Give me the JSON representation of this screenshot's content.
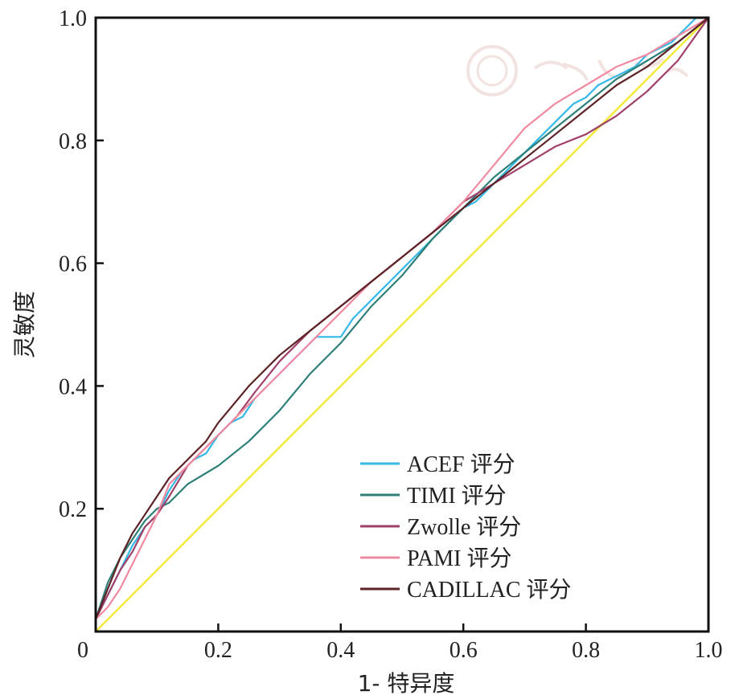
{
  "chart_data": {
    "type": "line",
    "title": "",
    "xlabel": "1- 特异度",
    "ylabel": "灵敏度",
    "xlim": [
      0,
      1
    ],
    "ylim": [
      0,
      1
    ],
    "x_ticks": [
      "0",
      "0.2",
      "0.4",
      "0.6",
      "0.8",
      "1.0"
    ],
    "y_ticks": [
      "0.2",
      "0.4",
      "0.6",
      "0.8",
      "1.0"
    ],
    "grid": false,
    "legend_position": "bottom-right",
    "series": [
      {
        "name": "ACEF 评分",
        "color": "#33b8e8",
        "x": [
          0,
          0.02,
          0.04,
          0.06,
          0.08,
          0.1,
          0.12,
          0.14,
          0.16,
          0.18,
          0.2,
          0.22,
          0.24,
          0.26,
          0.28,
          0.3,
          0.32,
          0.34,
          0.36,
          0.38,
          0.4,
          0.42,
          0.44,
          0.46,
          0.48,
          0.5,
          0.52,
          0.54,
          0.56,
          0.58,
          0.6,
          0.62,
          0.64,
          0.66,
          0.68,
          0.7,
          0.72,
          0.74,
          0.76,
          0.78,
          0.8,
          0.82,
          0.84,
          0.86,
          0.88,
          0.9,
          0.92,
          0.94,
          0.96,
          0.98,
          1.0
        ],
        "y": [
          0.02,
          0.06,
          0.1,
          0.14,
          0.17,
          0.19,
          0.23,
          0.26,
          0.28,
          0.29,
          0.32,
          0.34,
          0.35,
          0.38,
          0.4,
          0.42,
          0.44,
          0.46,
          0.48,
          0.48,
          0.48,
          0.51,
          0.53,
          0.55,
          0.57,
          0.59,
          0.61,
          0.63,
          0.65,
          0.67,
          0.69,
          0.7,
          0.72,
          0.74,
          0.76,
          0.78,
          0.8,
          0.82,
          0.84,
          0.86,
          0.87,
          0.89,
          0.9,
          0.91,
          0.92,
          0.94,
          0.95,
          0.96,
          0.98,
          1.0,
          1.0
        ]
      },
      {
        "name": "TIMI 评分",
        "color": "#2e7f78",
        "x": [
          0,
          0.02,
          0.04,
          0.06,
          0.08,
          0.1,
          0.12,
          0.15,
          0.2,
          0.25,
          0.3,
          0.35,
          0.4,
          0.45,
          0.5,
          0.55,
          0.6,
          0.65,
          0.7,
          0.75,
          0.8,
          0.85,
          0.9,
          0.95,
          1.0
        ],
        "y": [
          0.02,
          0.08,
          0.12,
          0.15,
          0.18,
          0.2,
          0.21,
          0.24,
          0.27,
          0.31,
          0.36,
          0.42,
          0.47,
          0.53,
          0.58,
          0.64,
          0.69,
          0.74,
          0.78,
          0.82,
          0.86,
          0.9,
          0.93,
          0.96,
          1.0
        ]
      },
      {
        "name": "Zwolle 评分",
        "color": "#a0406a",
        "x": [
          0,
          0.02,
          0.04,
          0.06,
          0.08,
          0.1,
          0.12,
          0.15,
          0.18,
          0.2,
          0.23,
          0.26,
          0.3,
          0.35,
          0.4,
          0.45,
          0.5,
          0.55,
          0.6,
          0.65,
          0.7,
          0.75,
          0.8,
          0.85,
          0.9,
          0.95,
          1.0
        ],
        "y": [
          0.02,
          0.06,
          0.1,
          0.13,
          0.17,
          0.19,
          0.22,
          0.27,
          0.3,
          0.32,
          0.35,
          0.39,
          0.44,
          0.49,
          0.53,
          0.57,
          0.61,
          0.65,
          0.7,
          0.73,
          0.76,
          0.79,
          0.81,
          0.84,
          0.88,
          0.93,
          1.0
        ]
      },
      {
        "name": "PAMI 评分",
        "color": "#f08aa0",
        "x": [
          0,
          0.02,
          0.04,
          0.06,
          0.08,
          0.1,
          0.12,
          0.15,
          0.18,
          0.2,
          0.25,
          0.3,
          0.35,
          0.4,
          0.45,
          0.5,
          0.55,
          0.6,
          0.65,
          0.7,
          0.75,
          0.8,
          0.85,
          0.9,
          0.95,
          1.0
        ],
        "y": [
          0.02,
          0.04,
          0.07,
          0.11,
          0.15,
          0.19,
          0.24,
          0.27,
          0.3,
          0.32,
          0.37,
          0.42,
          0.47,
          0.52,
          0.57,
          0.61,
          0.65,
          0.7,
          0.76,
          0.82,
          0.86,
          0.89,
          0.92,
          0.94,
          0.97,
          1.0
        ]
      },
      {
        "name": "CADILLAC 评分",
        "color": "#5c2226",
        "x": [
          0,
          0.02,
          0.04,
          0.06,
          0.08,
          0.1,
          0.12,
          0.15,
          0.18,
          0.2,
          0.25,
          0.3,
          0.35,
          0.4,
          0.45,
          0.5,
          0.55,
          0.6,
          0.65,
          0.7,
          0.75,
          0.8,
          0.85,
          0.9,
          0.95,
          1.0
        ],
        "y": [
          0.02,
          0.07,
          0.12,
          0.16,
          0.19,
          0.22,
          0.25,
          0.28,
          0.31,
          0.34,
          0.4,
          0.45,
          0.49,
          0.53,
          0.57,
          0.61,
          0.65,
          0.69,
          0.73,
          0.77,
          0.81,
          0.85,
          0.89,
          0.92,
          0.96,
          1.0
        ]
      },
      {
        "name": "",
        "color": "#f2ea3c",
        "x": [
          0,
          1
        ],
        "y": [
          0,
          1
        ]
      }
    ]
  }
}
